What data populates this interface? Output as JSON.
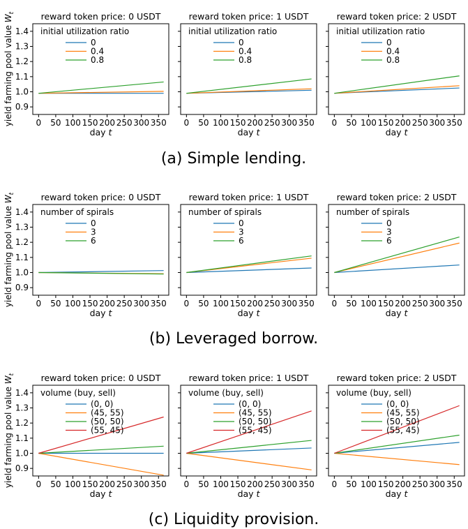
{
  "ylabel": "yield farming pool value W_t",
  "xlabel": "day t",
  "chart_data": [
    {
      "caption": "(a) Simple lending.",
      "legend_title": "initial utilization ratio",
      "series_names": [
        "0",
        "0.4",
        "0.8"
      ],
      "colors": [
        "#1f77b4",
        "#ff7f0e",
        "#2ca02c"
      ],
      "panels": [
        {
          "title": "reward token price: 0 USDT",
          "type": "line",
          "x": [
            0,
            365
          ],
          "series": [
            {
              "name": "0",
              "values": [
                0.99,
                0.99
              ]
            },
            {
              "name": "0.4",
              "values": [
                0.99,
                1.003
              ]
            },
            {
              "name": "0.8",
              "values": [
                0.99,
                1.065
              ]
            }
          ],
          "xlim": [
            -17,
            380
          ],
          "ylim": [
            0.85,
            1.45
          ]
        },
        {
          "title": "reward token price: 1 USDT",
          "type": "line",
          "x": [
            0,
            365
          ],
          "series": [
            {
              "name": "0",
              "values": [
                0.99,
                1.01
              ]
            },
            {
              "name": "0.4",
              "values": [
                0.99,
                1.02
              ]
            },
            {
              "name": "0.8",
              "values": [
                0.99,
                1.085
              ]
            }
          ],
          "xlim": [
            -17,
            380
          ],
          "ylim": [
            0.85,
            1.45
          ]
        },
        {
          "title": "reward token price: 2 USDT",
          "type": "line",
          "x": [
            0,
            365
          ],
          "series": [
            {
              "name": "0",
              "values": [
                0.99,
                1.025
              ]
            },
            {
              "name": "0.4",
              "values": [
                0.99,
                1.04
              ]
            },
            {
              "name": "0.8",
              "values": [
                0.99,
                1.105
              ]
            }
          ],
          "xlim": [
            -17,
            380
          ],
          "ylim": [
            0.85,
            1.45
          ]
        }
      ]
    },
    {
      "caption": "(b) Leveraged borrow.",
      "legend_title": "number of spirals",
      "series_names": [
        "0",
        "3",
        "6"
      ],
      "colors": [
        "#1f77b4",
        "#ff7f0e",
        "#2ca02c"
      ],
      "panels": [
        {
          "title": "reward token price: 0 USDT",
          "type": "line",
          "x": [
            0,
            365
          ],
          "series": [
            {
              "name": "0",
              "values": [
                1.0,
                1.013
              ]
            },
            {
              "name": "3",
              "values": [
                1.0,
                0.992
              ]
            },
            {
              "name": "6",
              "values": [
                1.0,
                0.99
              ]
            }
          ],
          "xlim": [
            -17,
            380
          ],
          "ylim": [
            0.85,
            1.45
          ]
        },
        {
          "title": "reward token price: 1 USDT",
          "type": "line",
          "x": [
            0,
            365
          ],
          "series": [
            {
              "name": "0",
              "values": [
                1.0,
                1.03
              ]
            },
            {
              "name": "3",
              "values": [
                1.0,
                1.095
              ]
            },
            {
              "name": "6",
              "values": [
                1.0,
                1.11
              ]
            }
          ],
          "xlim": [
            -17,
            380
          ],
          "ylim": [
            0.85,
            1.45
          ]
        },
        {
          "title": "reward token price: 2 USDT",
          "type": "line",
          "x": [
            0,
            365
          ],
          "series": [
            {
              "name": "0",
              "values": [
                1.0,
                1.05
              ]
            },
            {
              "name": "3",
              "values": [
                1.0,
                1.195
              ]
            },
            {
              "name": "6",
              "values": [
                1.0,
                1.235
              ]
            }
          ],
          "xlim": [
            -17,
            380
          ],
          "ylim": [
            0.85,
            1.45
          ]
        }
      ]
    },
    {
      "caption": "(c) Liquidity provision.",
      "legend_title": "volume (buy, sell)",
      "series_names": [
        "(0, 0)",
        "(45, 55)",
        "(50, 50)",
        "(55, 45)"
      ],
      "colors": [
        "#1f77b4",
        "#ff7f0e",
        "#2ca02c",
        "#d62728"
      ],
      "panels": [
        {
          "title": "reward token price: 0 USDT",
          "type": "line",
          "x": [
            0,
            365
          ],
          "series": [
            {
              "name": "(0, 0)",
              "values": [
                1.0,
                1.0
              ]
            },
            {
              "name": "(45, 55)",
              "values": [
                1.0,
                0.855
              ]
            },
            {
              "name": "(50, 50)",
              "values": [
                1.0,
                1.047
              ]
            },
            {
              "name": "(55, 45)",
              "values": [
                1.0,
                1.24
              ]
            }
          ],
          "xlim": [
            -17,
            380
          ],
          "ylim": [
            0.85,
            1.45
          ]
        },
        {
          "title": "reward token price: 1 USDT",
          "type": "line",
          "x": [
            0,
            365
          ],
          "series": [
            {
              "name": "(0, 0)",
              "values": [
                1.0,
                1.035
              ]
            },
            {
              "name": "(45, 55)",
              "values": [
                1.0,
                0.89
              ]
            },
            {
              "name": "(50, 50)",
              "values": [
                1.0,
                1.085
              ]
            },
            {
              "name": "(55, 45)",
              "values": [
                1.0,
                1.28
              ]
            }
          ],
          "xlim": [
            -17,
            380
          ],
          "ylim": [
            0.85,
            1.45
          ]
        },
        {
          "title": "reward token price: 2 USDT",
          "type": "line",
          "x": [
            0,
            365
          ],
          "series": [
            {
              "name": "(0, 0)",
              "values": [
                1.0,
                1.072
              ]
            },
            {
              "name": "(45, 55)",
              "values": [
                1.0,
                0.925
              ]
            },
            {
              "name": "(50, 50)",
              "values": [
                1.0,
                1.12
              ]
            },
            {
              "name": "(55, 45)",
              "values": [
                1.0,
                1.315
              ]
            }
          ],
          "xlim": [
            -17,
            380
          ],
          "ylim": [
            0.85,
            1.45
          ]
        }
      ]
    }
  ],
  "xticks": [
    0,
    50,
    100,
    150,
    200,
    250,
    300,
    350
  ],
  "yticks": [
    "0.9",
    "1.0",
    "1.1",
    "1.2",
    "1.3",
    "1.4"
  ]
}
